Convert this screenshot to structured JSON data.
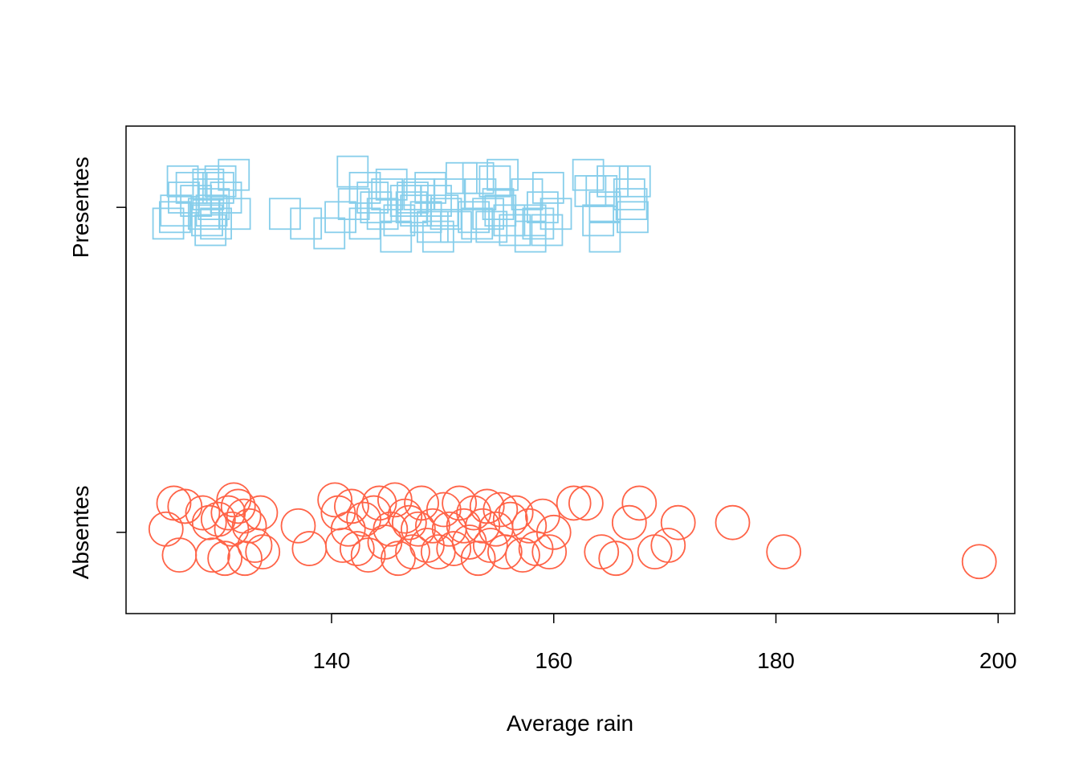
{
  "chart_data": {
    "type": "scatter",
    "title": "",
    "xlabel": "Average rain",
    "ylabel": "",
    "xlim": [
      121.5,
      201.5
    ],
    "ylim": [
      -0.25,
      1.25
    ],
    "x_ticks": [
      140,
      160,
      180,
      200
    ],
    "x_tick_labels": [
      "140",
      "160",
      "180",
      "200"
    ],
    "y_ticks": [
      0,
      1
    ],
    "y_tick_labels": [
      "Absentes",
      "Presentes"
    ],
    "grid": false,
    "legend": "none",
    "series": [
      {
        "name": "Presentes",
        "marker": "square",
        "color": "#87CEEB",
        "points": [
          [
            125.3,
            0.95
          ],
          [
            125.9,
            0.97
          ],
          [
            126.0,
            0.99
          ],
          [
            126.7,
            1.03
          ],
          [
            127.8,
            1.02
          ],
          [
            128.5,
            0.98
          ],
          [
            128.8,
            0.96
          ],
          [
            128.9,
            1.04
          ],
          [
            129.1,
            0.93
          ],
          [
            129.2,
            0.99
          ],
          [
            129.4,
            1.01
          ],
          [
            129.6,
            0.95
          ],
          [
            130.5,
            1.03
          ],
          [
            131.3,
            0.98
          ],
          [
            131.2,
            1.1
          ],
          [
            130.0,
            1.08
          ],
          [
            129.8,
            1.06
          ],
          [
            128.9,
            1.07
          ],
          [
            127.4,
            1.06
          ],
          [
            126.6,
            1.08
          ],
          [
            135.8,
            0.98
          ],
          [
            137.7,
            0.95
          ],
          [
            139.8,
            0.92
          ],
          [
            140.8,
            0.97
          ],
          [
            142.0,
            1.01
          ],
          [
            143.0,
            0.95
          ],
          [
            143.0,
            1.06
          ],
          [
            143.7,
            1.03
          ],
          [
            144.6,
            0.98
          ],
          [
            144.0,
            1.0
          ],
          [
            145.0,
            1.04
          ],
          [
            145.4,
            1.07
          ],
          [
            145.8,
            0.91
          ],
          [
            141.9,
            1.11
          ],
          [
            146.1,
            0.96
          ],
          [
            146.7,
            1.02
          ],
          [
            147.2,
            1.0
          ],
          [
            147.6,
            0.99
          ],
          [
            147.9,
            1.04
          ],
          [
            148.5,
            0.97
          ],
          [
            148.9,
            1.06
          ],
          [
            149.1,
            0.94
          ],
          [
            149.6,
            0.91
          ],
          [
            149.4,
            1.02
          ],
          [
            150.0,
            0.99
          ],
          [
            150.6,
            1.04
          ],
          [
            150.3,
            0.98
          ],
          [
            151.2,
            0.94
          ],
          [
            151.7,
            1.09
          ],
          [
            152.8,
            0.97
          ],
          [
            153.1,
            0.95
          ],
          [
            153.2,
            1.09
          ],
          [
            153.4,
            1.04
          ],
          [
            154.1,
            0.98
          ],
          [
            154.4,
            0.94
          ],
          [
            154.7,
            1.08
          ],
          [
            155.0,
            1.01
          ],
          [
            155.4,
            1.1
          ],
          [
            155.2,
            0.99
          ],
          [
            156.0,
            0.96
          ],
          [
            156.5,
            0.93
          ],
          [
            157.6,
            1.04
          ],
          [
            157.9,
            0.91
          ],
          [
            157.9,
            0.96
          ],
          [
            158.6,
            0.95
          ],
          [
            159.0,
            1.0
          ],
          [
            159.4,
            0.93
          ],
          [
            159.5,
            1.06
          ],
          [
            160.2,
            0.98
          ],
          [
            163.1,
            1.1
          ],
          [
            163.3,
            1.05
          ],
          [
            164.0,
            0.96
          ],
          [
            164.3,
            1.05
          ],
          [
            164.6,
            1.0
          ],
          [
            164.6,
            0.91
          ],
          [
            165.3,
            1.08
          ],
          [
            166.8,
            1.04
          ],
          [
            167.0,
            1.01
          ],
          [
            167.1,
            0.97
          ],
          [
            167.3,
            1.08
          ],
          [
            147.3,
            1.03
          ]
        ]
      },
      {
        "name": "Absentes",
        "marker": "circle",
        "color": "#FF6347",
        "points": [
          [
            125.1,
            0.01
          ],
          [
            125.8,
            0.09
          ],
          [
            126.3,
            -0.07
          ],
          [
            126.8,
            0.08
          ],
          [
            128.4,
            0.06
          ],
          [
            129.0,
            0.03
          ],
          [
            129.3,
            -0.07
          ],
          [
            129.8,
            0.04
          ],
          [
            130.4,
            -0.08
          ],
          [
            130.7,
            0.06
          ],
          [
            131.0,
            0.01
          ],
          [
            131.2,
            0.1
          ],
          [
            131.6,
            0.08
          ],
          [
            132.1,
            0.05
          ],
          [
            132.2,
            -0.08
          ],
          [
            132.6,
            0.02
          ],
          [
            133.1,
            -0.04
          ],
          [
            133.6,
            0.06
          ],
          [
            133.8,
            -0.06
          ],
          [
            137.0,
            0.02
          ],
          [
            138.0,
            -0.05
          ],
          [
            140.3,
            0.1
          ],
          [
            140.6,
            0.06
          ],
          [
            141.0,
            -0.04
          ],
          [
            141.5,
            0.01
          ],
          [
            141.8,
            0.08
          ],
          [
            142.3,
            -0.05
          ],
          [
            142.9,
            0.04
          ],
          [
            143.3,
            -0.07
          ],
          [
            143.8,
            0.06
          ],
          [
            144.3,
            0.09
          ],
          [
            144.8,
            -0.03
          ],
          [
            145.3,
            0.01
          ],
          [
            145.7,
            0.1
          ],
          [
            146.0,
            -0.08
          ],
          [
            146.6,
            0.05
          ],
          [
            147.0,
            0.03
          ],
          [
            147.3,
            -0.06
          ],
          [
            147.8,
            0.01
          ],
          [
            148.1,
            0.09
          ],
          [
            148.6,
            -0.04
          ],
          [
            149.1,
            0.02
          ],
          [
            149.6,
            -0.06
          ],
          [
            150.1,
            0.07
          ],
          [
            150.6,
            0.01
          ],
          [
            151.0,
            -0.05
          ],
          [
            151.5,
            0.09
          ],
          [
            151.9,
            0.02
          ],
          [
            152.4,
            -0.03
          ],
          [
            152.8,
            0.06
          ],
          [
            153.2,
            -0.08
          ],
          [
            153.6,
            0.02
          ],
          [
            154.0,
            0.08
          ],
          [
            154.3,
            -0.04
          ],
          [
            154.8,
            0.01
          ],
          [
            155.2,
            0.07
          ],
          [
            155.6,
            -0.06
          ],
          [
            156.1,
            0.04
          ],
          [
            156.6,
            0.06
          ],
          [
            157.2,
            -0.07
          ],
          [
            157.8,
            0.02
          ],
          [
            158.4,
            -0.05
          ],
          [
            159.0,
            0.05
          ],
          [
            159.6,
            -0.06
          ],
          [
            160.0,
            0.0
          ],
          [
            161.8,
            0.09
          ],
          [
            162.9,
            0.09
          ],
          [
            164.3,
            -0.06
          ],
          [
            165.6,
            -0.08
          ],
          [
            166.8,
            0.03
          ],
          [
            167.7,
            0.09
          ],
          [
            169.1,
            -0.06
          ],
          [
            170.3,
            -0.04
          ],
          [
            171.2,
            0.03
          ],
          [
            176.1,
            0.03
          ],
          [
            180.7,
            -0.06
          ],
          [
            198.3,
            -0.09
          ]
        ]
      }
    ]
  }
}
